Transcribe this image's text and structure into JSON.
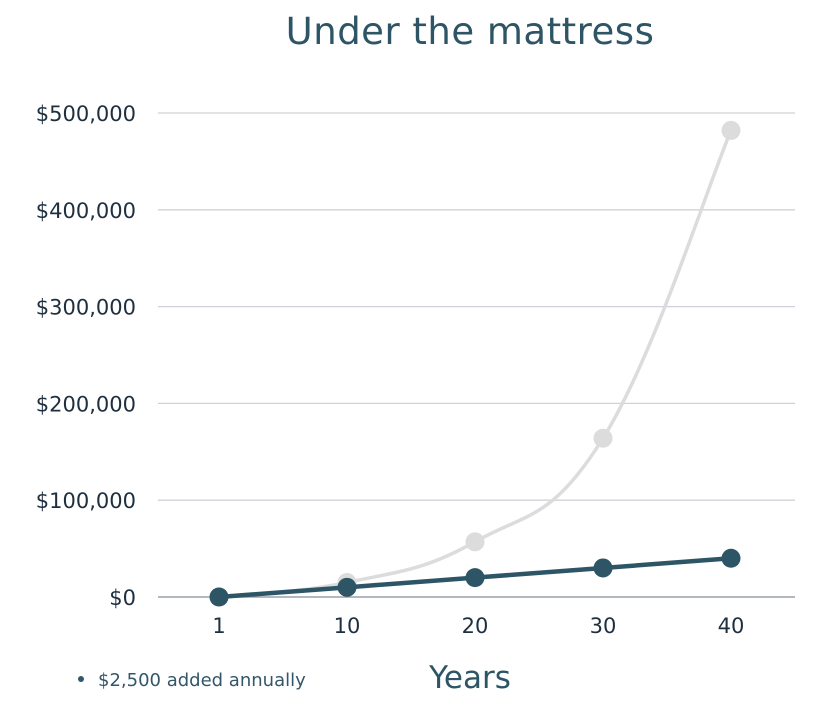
{
  "chart_data": {
    "type": "line",
    "title": "Under the mattress",
    "xlabel": "Years",
    "ylabel": "",
    "categories": [
      "1",
      "10",
      "20",
      "30",
      "40"
    ],
    "ylim": [
      0,
      500000
    ],
    "y_ticks": [
      0,
      100000,
      200000,
      300000,
      400000,
      500000
    ],
    "y_tick_labels": [
      "$0",
      "$100,000",
      "$200,000",
      "$300,000",
      "$400,000",
      "$500,000"
    ],
    "grid": true,
    "legend": [
      {
        "label": "$2,500 added annually",
        "color": "#33566a"
      }
    ],
    "series": [
      {
        "color": "#dcdcdc",
        "values": [
          0,
          15000,
          57000,
          164000,
          482000
        ]
      },
      {
        "color": "#2e5566",
        "values": [
          0,
          10000,
          20000,
          30000,
          40000
        ]
      }
    ],
    "colors": {
      "title": "#2e5566",
      "grid": "#cfd2d8",
      "axis": "#9aa0a8",
      "tick_text": "#1e2f3f"
    }
  }
}
